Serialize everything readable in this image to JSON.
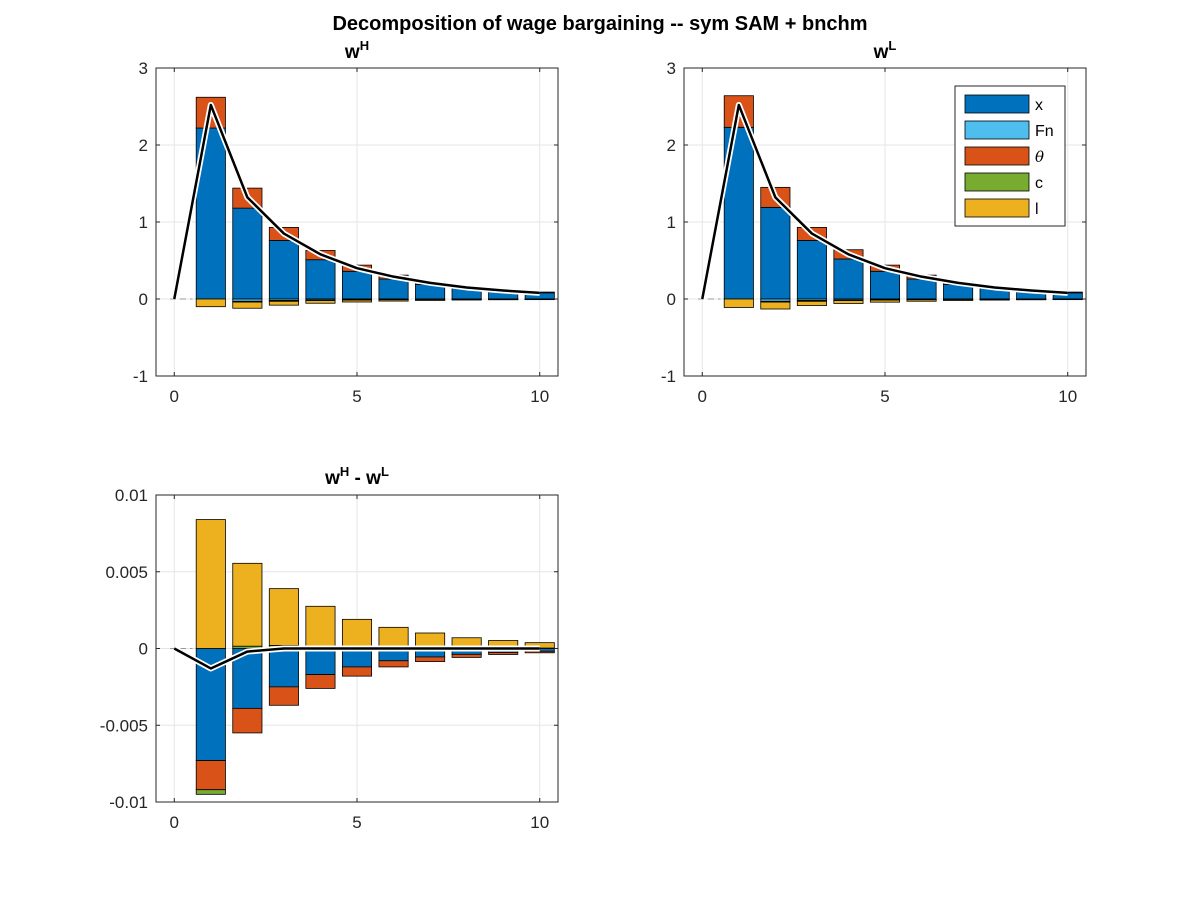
{
  "figure_title": "Decomposition of wage bargaining -- sym SAM + bnchm",
  "colors": {
    "x": "#0072BD",
    "Fn": "#4DBEEE",
    "theta": "#D95319",
    "c": "#77AC30",
    "l": "#EDB120",
    "total_line": "#000000",
    "grid": "#e6e6e6",
    "axis": "#262626"
  },
  "legend": {
    "placement": "top-right of panel 2",
    "entries": [
      {
        "key": "x",
        "label": "x"
      },
      {
        "key": "Fn",
        "label": "Fn"
      },
      {
        "key": "theta",
        "label": "θ"
      },
      {
        "key": "c",
        "label": "c"
      },
      {
        "key": "l",
        "label": "l"
      }
    ]
  },
  "chart_data": [
    {
      "type": "bar",
      "stacked": true,
      "title": "w",
      "title_sup": "H",
      "xlim": [
        -0.5,
        10.5
      ],
      "ylim": [
        -1,
        3
      ],
      "xticks": [
        0,
        5,
        10
      ],
      "yticks": [
        -1,
        0,
        1,
        2,
        3
      ],
      "xtick_labels": [
        "0",
        "5",
        "10"
      ],
      "ytick_labels": [
        "-1",
        "0",
        "1",
        "2",
        "3"
      ],
      "grid": true,
      "x": [
        1,
        2,
        3,
        4,
        5,
        6,
        7,
        8,
        9,
        10
      ],
      "series": [
        {
          "key": "x",
          "name": "x",
          "values": [
            2.22,
            1.18,
            0.76,
            0.51,
            0.36,
            0.26,
            0.19,
            0.14,
            0.1,
            0.08
          ]
        },
        {
          "key": "Fn",
          "name": "Fn",
          "values": [
            0.0,
            -0.03,
            -0.02,
            -0.015,
            -0.01,
            -0.007,
            -0.005,
            -0.003,
            -0.002,
            -0.001
          ]
        },
        {
          "key": "theta",
          "name": "θ",
          "values": [
            0.4,
            0.26,
            0.17,
            0.12,
            0.08,
            0.05,
            0.03,
            0.02,
            0.01,
            0.01
          ]
        },
        {
          "key": "c",
          "name": "c",
          "values": [
            0.0,
            -0.01,
            -0.01,
            -0.005,
            -0.004,
            -0.003,
            -0.002,
            -0.002,
            -0.001,
            -0.001
          ]
        },
        {
          "key": "l",
          "name": "l",
          "values": [
            -0.1,
            -0.08,
            -0.05,
            -0.035,
            -0.025,
            -0.017,
            -0.012,
            -0.008,
            -0.006,
            -0.004
          ]
        }
      ],
      "line": {
        "x": [
          0,
          1,
          2,
          3,
          4,
          5,
          6,
          7,
          8,
          9,
          10
        ],
        "y": [
          0,
          2.52,
          1.32,
          0.85,
          0.58,
          0.4,
          0.29,
          0.21,
          0.15,
          0.11,
          0.08
        ]
      }
    },
    {
      "type": "bar",
      "stacked": true,
      "title": "w",
      "title_sup": "L",
      "xlim": [
        -0.5,
        10.5
      ],
      "ylim": [
        -1,
        3
      ],
      "xticks": [
        0,
        5,
        10
      ],
      "yticks": [
        -1,
        0,
        1,
        2,
        3
      ],
      "xtick_labels": [
        "0",
        "5",
        "10"
      ],
      "ytick_labels": [
        "-1",
        "0",
        "1",
        "2",
        "3"
      ],
      "grid": true,
      "x": [
        1,
        2,
        3,
        4,
        5,
        6,
        7,
        8,
        9,
        10
      ],
      "series": [
        {
          "key": "x",
          "name": "x",
          "values": [
            2.23,
            1.19,
            0.76,
            0.52,
            0.36,
            0.26,
            0.19,
            0.14,
            0.1,
            0.08
          ]
        },
        {
          "key": "Fn",
          "name": "Fn",
          "values": [
            0.0,
            -0.03,
            -0.02,
            -0.015,
            -0.01,
            -0.007,
            -0.005,
            -0.003,
            -0.002,
            -0.001
          ]
        },
        {
          "key": "theta",
          "name": "θ",
          "values": [
            0.41,
            0.26,
            0.17,
            0.12,
            0.08,
            0.05,
            0.03,
            0.02,
            0.01,
            0.01
          ]
        },
        {
          "key": "c",
          "name": "c",
          "values": [
            0.0,
            -0.01,
            -0.01,
            -0.005,
            -0.004,
            -0.003,
            -0.002,
            -0.002,
            -0.001,
            -0.001
          ]
        },
        {
          "key": "l",
          "name": "l",
          "values": [
            -0.11,
            -0.09,
            -0.055,
            -0.038,
            -0.027,
            -0.019,
            -0.013,
            -0.009,
            -0.007,
            -0.005
          ]
        }
      ],
      "line": {
        "x": [
          0,
          1,
          2,
          3,
          4,
          5,
          6,
          7,
          8,
          9,
          10
        ],
        "y": [
          0,
          2.52,
          1.32,
          0.85,
          0.58,
          0.4,
          0.29,
          0.21,
          0.15,
          0.11,
          0.08
        ]
      }
    },
    {
      "type": "bar",
      "stacked": true,
      "title": "w",
      "title_sup": "H",
      "title_mid": " - w",
      "title_sup2": "L",
      "xlim": [
        -0.5,
        10.5
      ],
      "ylim": [
        -0.01,
        0.01
      ],
      "xticks": [
        0,
        5,
        10
      ],
      "yticks": [
        -0.01,
        -0.005,
        0,
        0.005,
        0.01
      ],
      "xtick_labels": [
        "0",
        "5",
        "10"
      ],
      "ytick_labels": [
        "-0.01",
        "-0.005",
        "0",
        "0.005",
        "0.01"
      ],
      "grid": true,
      "x": [
        1,
        2,
        3,
        4,
        5,
        6,
        7,
        8,
        9,
        10
      ],
      "series": [
        {
          "key": "x",
          "name": "x",
          "values": [
            -0.0073,
            -0.0039,
            -0.0025,
            -0.0017,
            -0.0012,
            -0.0008,
            -0.00055,
            -0.00038,
            -0.00026,
            -0.00018
          ]
        },
        {
          "key": "Fn",
          "name": "Fn",
          "values": [
            0.0,
            0.0,
            0.0,
            0.0,
            0.0,
            0.0,
            0.0,
            0.0,
            0.0,
            0.0
          ]
        },
        {
          "key": "theta",
          "name": "θ",
          "values": [
            -0.0019,
            -0.0016,
            -0.0012,
            -0.0009,
            -0.0006,
            -0.0004,
            -0.0003,
            -0.0002,
            -0.00013,
            -0.0001
          ]
        },
        {
          "key": "c",
          "name": "c",
          "values": [
            -0.0003,
            0.00015,
            0.0002,
            0.00015,
            0.0001,
            8e-05,
            6e-05,
            5e-05,
            4e-05,
            3e-05
          ]
        },
        {
          "key": "l",
          "name": "l",
          "values": [
            0.0084,
            0.0054,
            0.0037,
            0.0026,
            0.0018,
            0.0013,
            0.00095,
            0.00065,
            0.00048,
            0.00035
          ]
        }
      ],
      "line": {
        "x": [
          0,
          1,
          2,
          3,
          4,
          5,
          6,
          7,
          8,
          9,
          10
        ],
        "y": [
          0,
          -0.0013,
          -0.0002,
          0.0,
          0.0,
          0.0,
          0.0,
          0.0,
          0.0,
          0.0,
          0.0
        ]
      }
    }
  ]
}
